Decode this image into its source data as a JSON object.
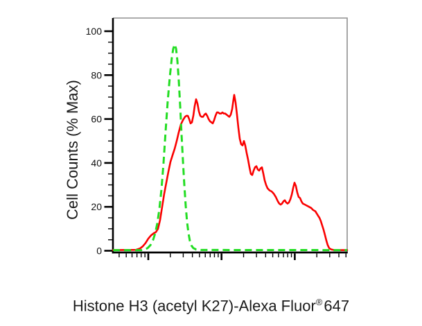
{
  "figure": {
    "background": "#ffffff"
  },
  "chart_data": {
    "type": "line",
    "subtype": "flow-cytometry-histogram-overlay",
    "title": "",
    "ylabel": "Cell Counts (% Max)",
    "xlabel_main": "Histone H3 (acetyl K27)-Alexa Fluor",
    "xlabel_sup": "®",
    "xlabel_suffix": "647",
    "ylim": [
      0,
      100
    ],
    "y_ticks": [
      0,
      20,
      40,
      60,
      80,
      100
    ],
    "y_minor_step": 5,
    "x_scale": "log10",
    "x_tick_labels_visible": false,
    "xlim_decades": [
      -0.48,
      2.715
    ],
    "x_major_decades": [
      0,
      1,
      2
    ],
    "grid": false,
    "legend": "none",
    "axis_color": "#000000",
    "frame_color": "#8f8f8f",
    "series": [
      {
        "name": "red-solid",
        "color": "#fa0000",
        "style": "solid",
        "points": [
          [
            -0.482,
            0.3
          ],
          [
            -0.17,
            0.4
          ],
          [
            -0.114,
            1
          ],
          [
            -0.076,
            2
          ],
          [
            -0.038,
            3.5
          ],
          [
            0.0,
            5.5
          ],
          [
            0.038,
            7
          ],
          [
            0.076,
            8
          ],
          [
            0.104,
            8.5
          ],
          [
            0.132,
            10
          ],
          [
            0.161,
            14
          ],
          [
            0.189,
            20
          ],
          [
            0.218,
            26
          ],
          [
            0.246,
            31
          ],
          [
            0.274,
            36
          ],
          [
            0.303,
            40.5
          ],
          [
            0.331,
            43.5
          ],
          [
            0.36,
            46.5
          ],
          [
            0.388,
            50
          ],
          [
            0.416,
            54
          ],
          [
            0.445,
            57.5
          ],
          [
            0.473,
            59.5
          ],
          [
            0.501,
            61
          ],
          [
            0.52,
            61.5
          ],
          [
            0.539,
            61.5
          ],
          [
            0.558,
            60
          ],
          [
            0.577,
            58
          ],
          [
            0.596,
            58.5
          ],
          [
            0.615,
            61.5
          ],
          [
            0.634,
            66
          ],
          [
            0.653,
            69
          ],
          [
            0.672,
            67
          ],
          [
            0.691,
            63.5
          ],
          [
            0.71,
            61.5
          ],
          [
            0.728,
            61
          ],
          [
            0.747,
            61
          ],
          [
            0.766,
            62
          ],
          [
            0.785,
            62.5
          ],
          [
            0.804,
            61.5
          ],
          [
            0.823,
            60
          ],
          [
            0.842,
            59
          ],
          [
            0.861,
            58.5
          ],
          [
            0.88,
            58
          ],
          [
            0.899,
            59.5
          ],
          [
            0.918,
            61.5
          ],
          [
            0.937,
            63
          ],
          [
            0.955,
            63
          ],
          [
            0.974,
            62.5
          ],
          [
            0.993,
            62.5
          ],
          [
            1.012,
            63
          ],
          [
            1.031,
            62.5
          ],
          [
            1.05,
            62.5
          ],
          [
            1.069,
            62
          ],
          [
            1.088,
            61.5
          ],
          [
            1.107,
            61
          ],
          [
            1.126,
            62
          ],
          [
            1.145,
            64.5
          ],
          [
            1.164,
            69
          ],
          [
            1.173,
            71
          ],
          [
            1.192,
            67.5
          ],
          [
            1.211,
            62
          ],
          [
            1.23,
            56
          ],
          [
            1.249,
            51
          ],
          [
            1.268,
            48.5
          ],
          [
            1.287,
            48
          ],
          [
            1.306,
            50
          ],
          [
            1.324,
            48
          ],
          [
            1.343,
            44.5
          ],
          [
            1.362,
            41.5
          ],
          [
            1.381,
            38
          ],
          [
            1.4,
            35
          ],
          [
            1.419,
            34.5
          ],
          [
            1.438,
            36.5
          ],
          [
            1.457,
            38
          ],
          [
            1.476,
            38.5
          ],
          [
            1.495,
            37
          ],
          [
            1.514,
            36.5
          ],
          [
            1.533,
            37.5
          ],
          [
            1.552,
            38
          ],
          [
            1.571,
            35
          ],
          [
            1.589,
            32
          ],
          [
            1.608,
            30
          ],
          [
            1.627,
            28.5
          ],
          [
            1.656,
            27.5
          ],
          [
            1.684,
            27
          ],
          [
            1.712,
            26
          ],
          [
            1.741,
            24.5
          ],
          [
            1.769,
            22.5
          ],
          [
            1.788,
            21.5
          ],
          [
            1.807,
            21
          ],
          [
            1.826,
            21.5
          ],
          [
            1.845,
            22.5
          ],
          [
            1.864,
            23
          ],
          [
            1.883,
            22
          ],
          [
            1.902,
            21.5
          ],
          [
            1.921,
            22
          ],
          [
            1.94,
            23.5
          ],
          [
            1.958,
            25.5
          ],
          [
            1.977,
            28.5
          ],
          [
            1.996,
            31
          ],
          [
            2.015,
            29.5
          ],
          [
            2.034,
            26.5
          ],
          [
            2.053,
            24.5
          ],
          [
            2.072,
            24
          ],
          [
            2.091,
            22.5
          ],
          [
            2.11,
            21.5
          ],
          [
            2.138,
            21
          ],
          [
            2.167,
            20.5
          ],
          [
            2.195,
            20
          ],
          [
            2.223,
            19.5
          ],
          [
            2.252,
            18.5
          ],
          [
            2.28,
            18
          ],
          [
            2.299,
            17
          ],
          [
            2.318,
            16
          ],
          [
            2.337,
            15
          ],
          [
            2.356,
            13.5
          ],
          [
            2.375,
            11.5
          ],
          [
            2.394,
            9.5
          ],
          [
            2.413,
            7
          ],
          [
            2.432,
            4.5
          ],
          [
            2.45,
            2.5
          ],
          [
            2.469,
            1.2
          ],
          [
            2.498,
            0.6
          ],
          [
            2.545,
            0.3
          ],
          [
            2.715,
            0.3
          ]
        ]
      },
      {
        "name": "green-dashed",
        "color": "#22dd22",
        "style": "dashed",
        "points": [
          [
            -0.482,
            0.3
          ],
          [
            -0.095,
            0.3
          ],
          [
            -0.047,
            0.6
          ],
          [
            -0.009,
            1.2
          ],
          [
            0.028,
            2.5
          ],
          [
            0.066,
            5
          ],
          [
            0.095,
            8
          ],
          [
            0.123,
            12.5
          ],
          [
            0.151,
            19
          ],
          [
            0.18,
            28
          ],
          [
            0.208,
            40
          ],
          [
            0.236,
            54
          ],
          [
            0.265,
            68
          ],
          [
            0.293,
            79
          ],
          [
            0.322,
            88
          ],
          [
            0.341,
            92
          ],
          [
            0.36,
            94
          ],
          [
            0.379,
            92
          ],
          [
            0.397,
            86.5
          ],
          [
            0.416,
            77.5
          ],
          [
            0.435,
            66
          ],
          [
            0.454,
            53
          ],
          [
            0.473,
            41
          ],
          [
            0.492,
            30
          ],
          [
            0.511,
            20.5
          ],
          [
            0.53,
            13
          ],
          [
            0.549,
            8
          ],
          [
            0.568,
            4.5
          ],
          [
            0.587,
            2.5
          ],
          [
            0.615,
            1.2
          ],
          [
            0.653,
            0.6
          ],
          [
            0.719,
            0.35
          ],
          [
            2.715,
            0.3
          ]
        ]
      }
    ]
  }
}
